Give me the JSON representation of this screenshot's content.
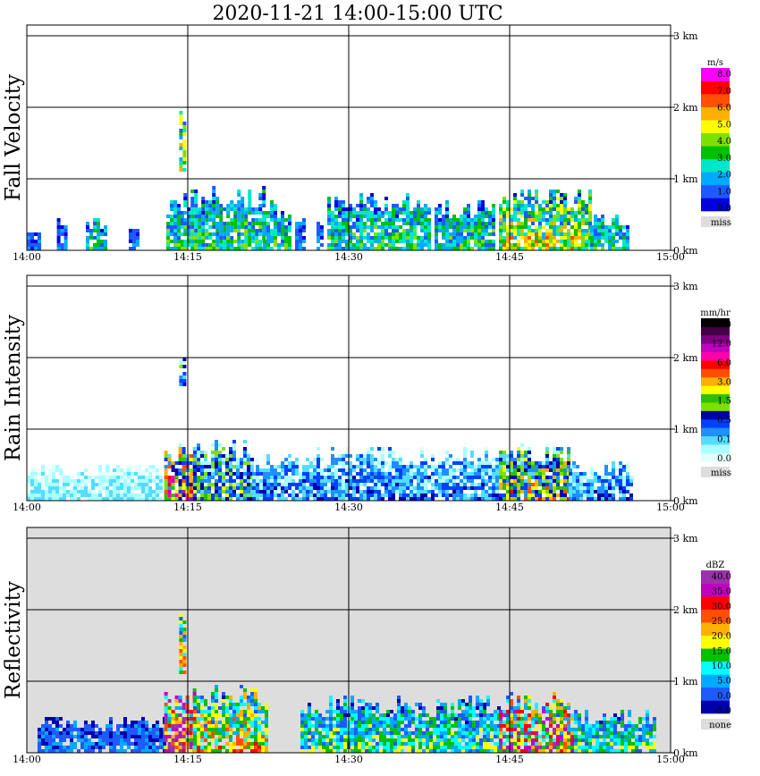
{
  "title": "2020-11-21   14:00-15:00 UTC",
  "x_ticks": [
    "14:00",
    "14:15",
    "14:30",
    "14:45",
    "15:00"
  ],
  "y_ticks": [
    "0 km",
    "1 km",
    "2 km",
    "3 km"
  ],
  "chart_data": [
    {
      "type": "heatmap",
      "ylabel": "Fall Velocity",
      "xlim": [
        "14:00",
        "15:00"
      ],
      "ylim_km": [
        0,
        3
      ],
      "grid": true,
      "background": "#ffffff",
      "colorbar": {
        "unit": "m/s",
        "colors": [
          "#0000dd",
          "#1e5aff",
          "#00aaff",
          "#00e6c8",
          "#00c000",
          "#7ee000",
          "#ffff00",
          "#ffb000",
          "#ff5000",
          "#ff0000",
          "#ff00ff"
        ],
        "tick_labels": [
          "8.0",
          "7.0",
          "6.0",
          "5.0",
          "4.0",
          "3.0",
          "2.0",
          "1.0",
          "0.0"
        ],
        "missing_label": "miss",
        "missing_color": "#dddddd"
      },
      "echoes": [
        {
          "t0": 0.0,
          "t1": 1.2,
          "h": 0.3,
          "level": 1
        },
        {
          "t0": 2.8,
          "t1": 3.8,
          "h": 0.55,
          "level": 1
        },
        {
          "t0": 5.5,
          "t1": 7.5,
          "h": 0.5,
          "level": 2
        },
        {
          "t0": 9.5,
          "t1": 10.5,
          "h": 0.45,
          "level": 1
        },
        {
          "t0": 13.0,
          "t1": 14.6,
          "h": 0.78,
          "level": 2
        },
        {
          "t0": 14.2,
          "t1": 14.8,
          "h": 2.05,
          "level": 3,
          "b": 1.1
        },
        {
          "t0": 14.6,
          "t1": 22.0,
          "h": 0.95,
          "level": 2
        },
        {
          "t0": 22.0,
          "t1": 24.5,
          "h": 0.72,
          "level": 2
        },
        {
          "t0": 25.0,
          "t1": 25.8,
          "h": 0.6,
          "level": 1
        },
        {
          "t0": 27.0,
          "t1": 27.6,
          "h": 0.45,
          "level": 1
        },
        {
          "t0": 28.0,
          "t1": 37.5,
          "h": 0.85,
          "level": 2
        },
        {
          "t0": 38.0,
          "t1": 43.5,
          "h": 0.75,
          "level": 2
        },
        {
          "t0": 44.0,
          "t1": 52.5,
          "h": 0.9,
          "level": 3
        },
        {
          "t0": 52.5,
          "t1": 56.0,
          "h": 0.55,
          "level": 2
        }
      ]
    },
    {
      "type": "heatmap",
      "ylabel": "Rain Intensity",
      "xlim": [
        "14:00",
        "15:00"
      ],
      "ylim_km": [
        0,
        3
      ],
      "grid": true,
      "background": "#ffffff",
      "colorbar": {
        "unit": "mm/hr",
        "colors": [
          "#e0ffff",
          "#aaffff",
          "#55ddff",
          "#1e90ff",
          "#0040ff",
          "#0000aa",
          "#7ee000",
          "#2cc000",
          "#ffff00",
          "#ffb000",
          "#ff5000",
          "#ff0000",
          "#ff00aa",
          "#c000c0",
          "#800080",
          "#440044",
          "#000000"
        ],
        "tick_labels": [
          "48.0",
          "12.0",
          "6.0",
          "3.0",
          "1.5",
          "0.5",
          "0.1",
          "0.0"
        ],
        "missing_label": "miss",
        "missing_color": "#dddddd"
      },
      "echoes": [
        {
          "t0": 0.0,
          "t1": 12.5,
          "h": 0.55,
          "level": 1
        },
        {
          "t0": 14.2,
          "t1": 14.8,
          "h": 2.05,
          "level": 3,
          "b": 1.6
        },
        {
          "t0": 12.8,
          "t1": 15.5,
          "h": 0.85,
          "level": 5
        },
        {
          "t0": 15.5,
          "t1": 21.0,
          "h": 0.9,
          "level": 3
        },
        {
          "t0": 21.0,
          "t1": 27.0,
          "h": 0.7,
          "level": 2
        },
        {
          "t0": 27.0,
          "t1": 44.0,
          "h": 0.78,
          "level": 2
        },
        {
          "t0": 44.0,
          "t1": 50.5,
          "h": 0.85,
          "level": 4
        },
        {
          "t0": 50.5,
          "t1": 56.5,
          "h": 0.6,
          "level": 2
        }
      ]
    },
    {
      "type": "heatmap",
      "ylabel": "Reflectivity",
      "xlim": [
        "14:00",
        "15:00"
      ],
      "ylim_km": [
        0,
        3
      ],
      "grid": true,
      "background": "#dddddd",
      "colorbar": {
        "unit": "dBZ",
        "colors": [
          "#0000aa",
          "#1e5aff",
          "#00aaff",
          "#00ffff",
          "#00c000",
          "#ffff00",
          "#ffb000",
          "#ff5000",
          "#ff0000",
          "#c000c0",
          "#9933aa"
        ],
        "tick_labels": [
          "40.0",
          "35.0",
          "30.0",
          "25.0",
          "20.0",
          "15.0",
          "10.0",
          "5.0",
          "0.0",
          "-5.0"
        ],
        "missing_label": "none",
        "missing_color": "#dddddd"
      },
      "echoes": [
        {
          "t0": 1.0,
          "t1": 13.0,
          "h": 0.55,
          "level": 1
        },
        {
          "t0": 14.2,
          "t1": 14.8,
          "h": 2.05,
          "level": 3,
          "b": 1.1
        },
        {
          "t0": 12.8,
          "t1": 15.5,
          "h": 0.95,
          "level": 5
        },
        {
          "t0": 15.5,
          "t1": 22.5,
          "h": 1.0,
          "level": 3
        },
        {
          "t0": 25.5,
          "t1": 44.0,
          "h": 0.85,
          "level": 2
        },
        {
          "t0": 44.0,
          "t1": 51.0,
          "h": 0.9,
          "level": 4
        },
        {
          "t0": 51.0,
          "t1": 58.5,
          "h": 0.65,
          "level": 2
        }
      ]
    }
  ]
}
